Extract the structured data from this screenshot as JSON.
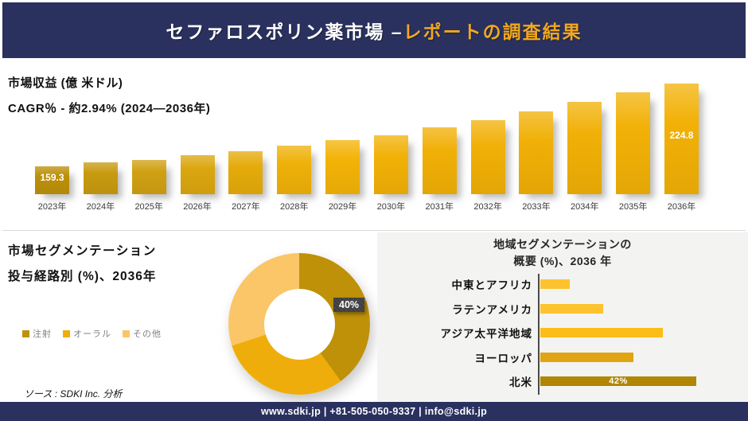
{
  "header": {
    "title_main": "セファロスポリン薬市場 –",
    "title_accent": "レポートの調査結果"
  },
  "chart_data": [
    {
      "id": "revenue",
      "type": "bar",
      "title": "市場収益 (億 米ドル)",
      "subtitle": "CAGR％ - 約2.94% (2024―2036年)",
      "categories": [
        "2023年",
        "2024年",
        "2025年",
        "2026年",
        "2027年",
        "2028年",
        "2029年",
        "2030年",
        "2031年",
        "2032年",
        "2033年",
        "2034年",
        "2035年",
        "2036年"
      ],
      "values": [
        159.3,
        162.5,
        164.3,
        167.9,
        171.3,
        175.5,
        180.1,
        184.2,
        190.2,
        195.8,
        202.6,
        210.1,
        217.9,
        224.8
      ],
      "data_labels": {
        "2023年": "159.3",
        "2036年": "224.8"
      },
      "ylim": [
        137.3,
        224.8
      ],
      "grid": false,
      "colors": [
        "#BC9009",
        "#C89A10",
        "#D0A013",
        "#DBA60F",
        "#E5AB0B",
        "#EFB109",
        "#F3B307",
        "#F2B106",
        "#F1B006",
        "#F1B006",
        "#F1B006",
        "#F1B006",
        "#F2B106",
        "#F2B106"
      ]
    },
    {
      "id": "route_segmentation",
      "type": "pie",
      "donut": true,
      "title": "市場セグメンテーション",
      "subtitle": "投与経路別 (%)、2036年",
      "labels": [
        "注射",
        "オーラル",
        "その他"
      ],
      "values": [
        40,
        30,
        30
      ],
      "colors": [
        "#BE9109",
        "#EFAD0C",
        "#FAC667"
      ],
      "data_label": "40%",
      "legend_position": "left"
    },
    {
      "id": "regional_overview",
      "type": "bar",
      "orientation": "horizontal",
      "title_lines": [
        "地域セグメンテーションの",
        "概要 (%)、2036 年"
      ],
      "categories": [
        "中東とアフリカ",
        "ラテンアメリカ",
        "アジア太平洋地域",
        "ヨーロッパ",
        "北米"
      ],
      "values": [
        8,
        17,
        33,
        25,
        42
      ],
      "data_labels": {
        "北米": "42%"
      },
      "xlim": [
        0,
        42
      ],
      "grid": false,
      "colors": [
        "#FDC32E",
        "#FDC32E",
        "#FCBD18",
        "#DFA512",
        "#B08604"
      ]
    }
  ],
  "source": "ソース : SDKI Inc. 分析",
  "footer": {
    "contact": "www.sdki.jp | +81-505-050-9337 | info@sdki.jp"
  },
  "palette": {
    "navy": "#2A315F",
    "accent_gold": "#F2A81D",
    "panel_gray": "#F3F3F1",
    "callout_dark": "#3F3F3F"
  }
}
